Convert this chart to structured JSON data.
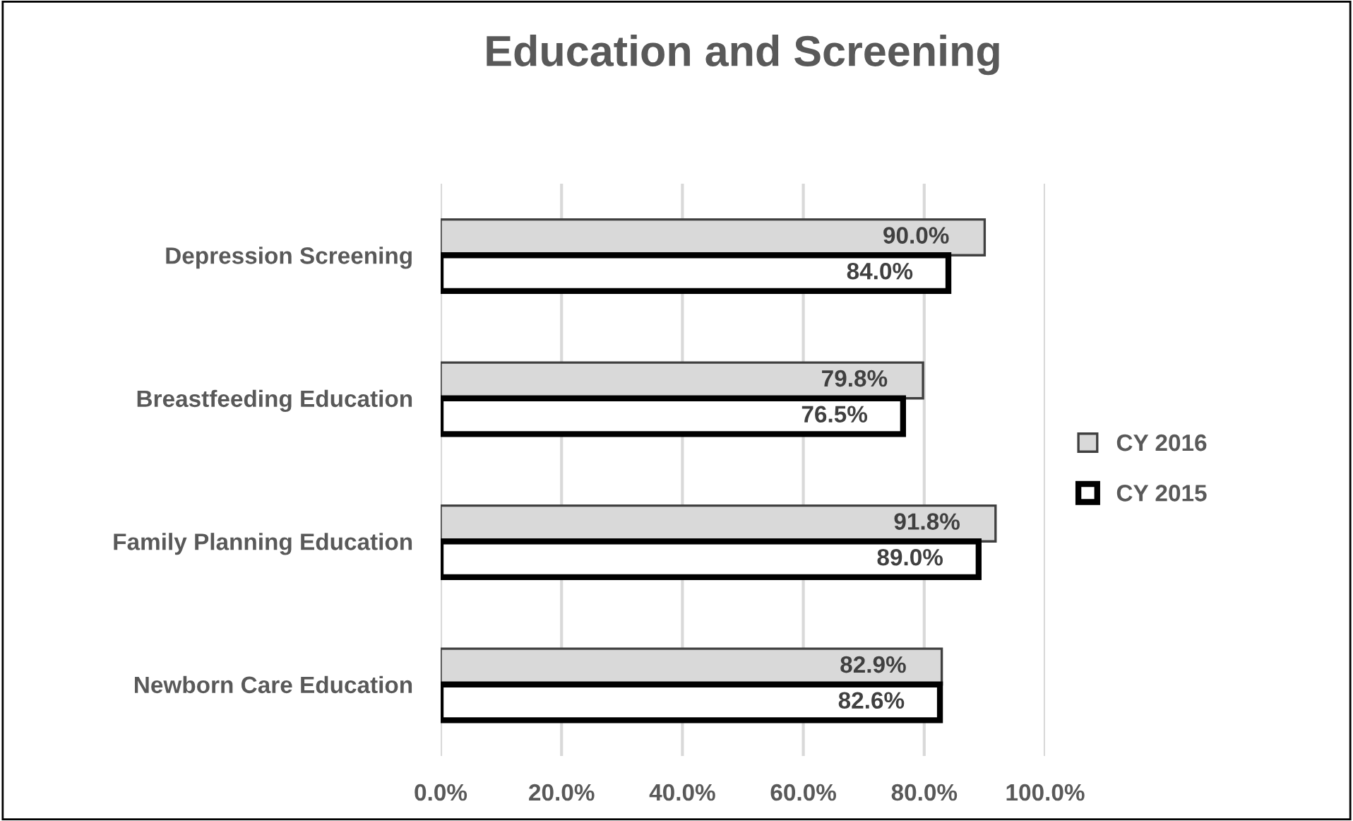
{
  "chart_data": {
    "type": "bar",
    "orientation": "horizontal",
    "title": "Education and Screening",
    "categories": [
      "Depression Screening",
      "Breastfeeding Education",
      "Family Planning Education",
      "Newborn Care Education"
    ],
    "series": [
      {
        "name": "CY 2016",
        "color": "#d9d9d9",
        "values": [
          90.0,
          79.8,
          91.8,
          82.9
        ],
        "value_labels": [
          "90.0%",
          "79.8%",
          "91.8%",
          "82.9%"
        ]
      },
      {
        "name": "CY 2015",
        "color": "#ffffff",
        "values": [
          84.0,
          76.5,
          89.0,
          82.6
        ],
        "value_labels": [
          "84.0%",
          "76.5%",
          "89.0%",
          "82.6%"
        ]
      }
    ],
    "xlim": [
      0,
      100
    ],
    "xticks": [
      {
        "value": 0,
        "label": "0.0%"
      },
      {
        "value": 20,
        "label": "20.0%"
      },
      {
        "value": 40,
        "label": "40.0%"
      },
      {
        "value": 60,
        "label": "60.0%"
      },
      {
        "value": 80,
        "label": "80.0%"
      },
      {
        "value": 100,
        "label": "100.0%"
      }
    ],
    "grid": "x",
    "legend": "right"
  }
}
